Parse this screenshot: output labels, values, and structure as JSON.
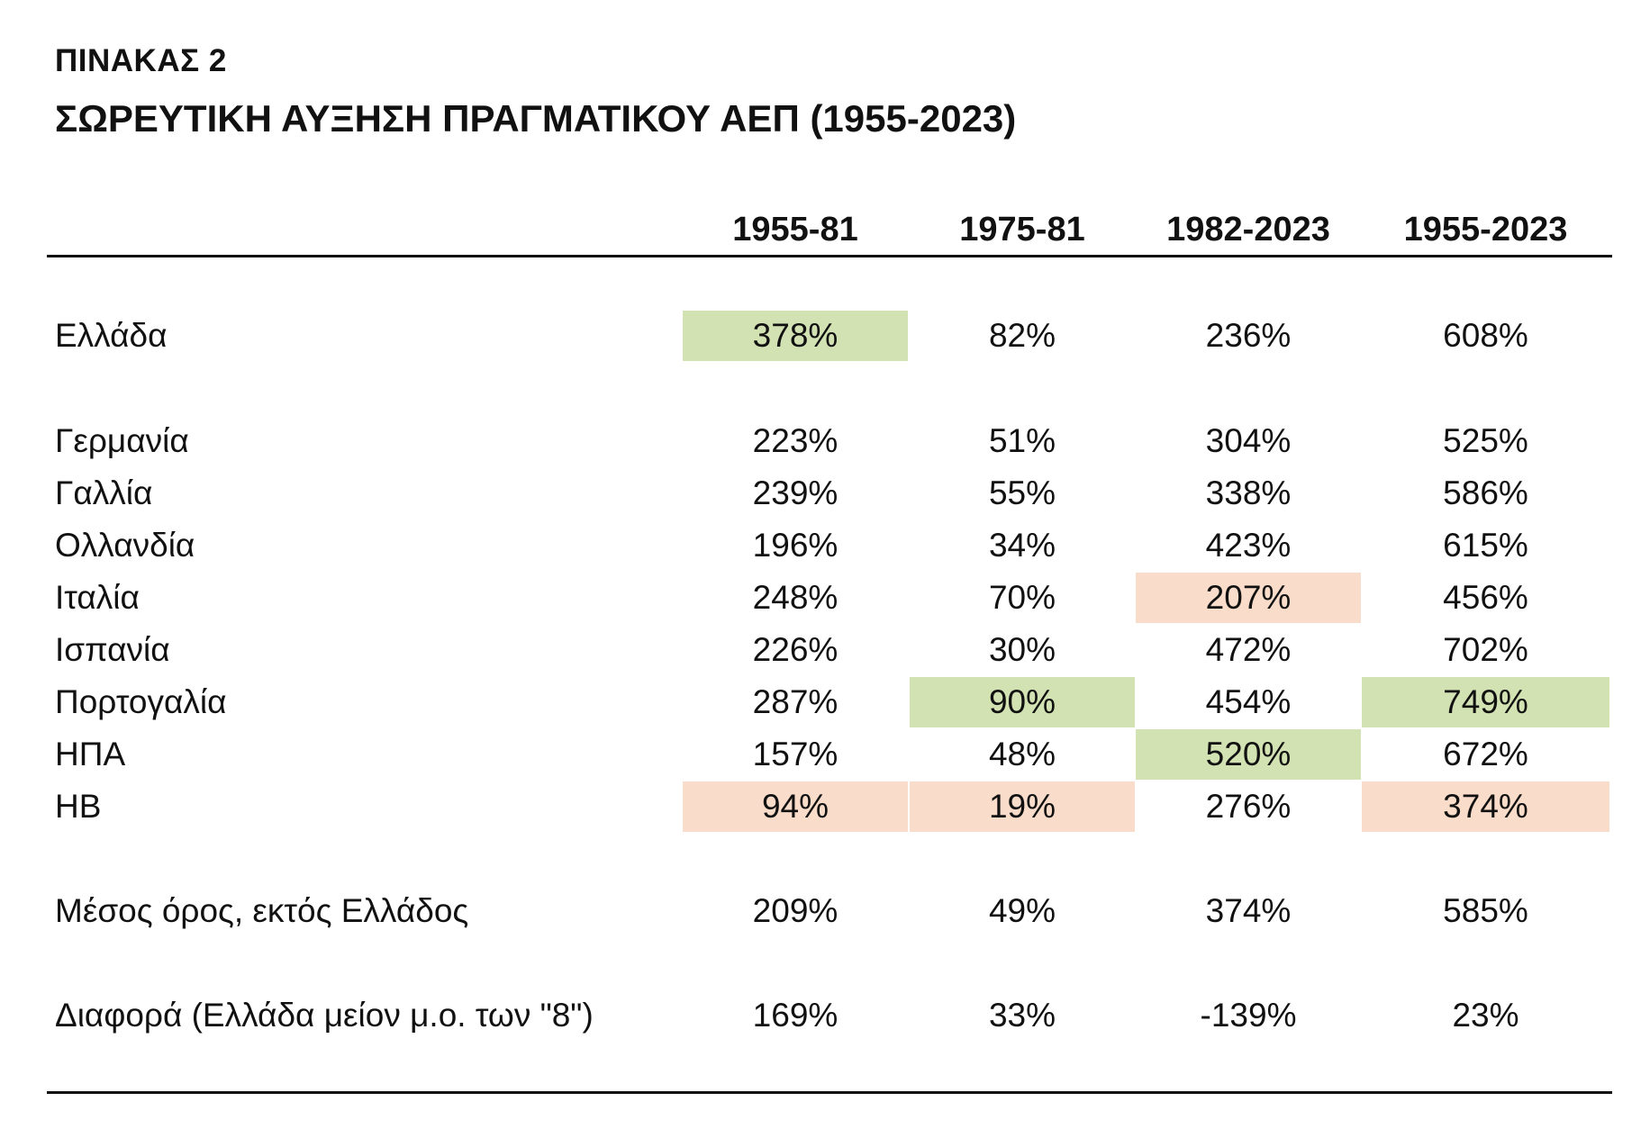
{
  "header": {
    "kicker": "ΠΙΝΑΚΑΣ 2",
    "title": "ΣΩΡΕΥΤΙΚΗ ΑΥΞΗΣΗ ΠΡΑΓΜΑΤΙΚΟΥ ΑΕΠ (1955-2023)"
  },
  "colors": {
    "highest": "#d2e2b2",
    "lowest": "#f9dcc9"
  },
  "table": {
    "columns": [
      "1955-81",
      "1975-81",
      "1982-2023",
      "1955-2023"
    ],
    "rows": [
      {
        "label": "Ελλάδα",
        "values": [
          "378%",
          "82%",
          "236%",
          "608%"
        ],
        "highlight": [
          "green",
          "",
          "",
          ""
        ]
      },
      {
        "label": "Γερμανία",
        "values": [
          "223%",
          "51%",
          "304%",
          "525%"
        ],
        "highlight": [
          "",
          "",
          "",
          ""
        ]
      },
      {
        "label": "Γαλλία",
        "values": [
          "239%",
          "55%",
          "338%",
          "586%"
        ],
        "highlight": [
          "",
          "",
          "",
          ""
        ]
      },
      {
        "label": "Ολλανδία",
        "values": [
          "196%",
          "34%",
          "423%",
          "615%"
        ],
        "highlight": [
          "",
          "",
          "",
          ""
        ]
      },
      {
        "label": "Ιταλία",
        "values": [
          "248%",
          "70%",
          "207%",
          "456%"
        ],
        "highlight": [
          "",
          "",
          "peach",
          ""
        ]
      },
      {
        "label": "Ισπανία",
        "values": [
          "226%",
          "30%",
          "472%",
          "702%"
        ],
        "highlight": [
          "",
          "",
          "",
          ""
        ]
      },
      {
        "label": "Πορτογαλία",
        "values": [
          "287%",
          "90%",
          "454%",
          "749%"
        ],
        "highlight": [
          "",
          "green",
          "",
          "green"
        ]
      },
      {
        "label": "ΗΠΑ",
        "values": [
          "157%",
          "48%",
          "520%",
          "672%"
        ],
        "highlight": [
          "",
          "",
          "green",
          ""
        ]
      },
      {
        "label": "ΗΒ",
        "values": [
          "94%",
          "19%",
          "276%",
          "374%"
        ],
        "highlight": [
          "peach",
          "peach",
          "",
          "peach"
        ]
      },
      {
        "label": "Μέσος όρος, εκτός Ελλάδος",
        "values": [
          "209%",
          "49%",
          "374%",
          "585%"
        ],
        "highlight": [
          "",
          "",
          "",
          ""
        ]
      },
      {
        "label": "Διαφορά (Ελλάδα μείον μ.ο. των \"8\")",
        "values": [
          "169%",
          "33%",
          "-139%",
          "23%"
        ],
        "highlight": [
          "",
          "",
          "",
          ""
        ]
      }
    ]
  }
}
